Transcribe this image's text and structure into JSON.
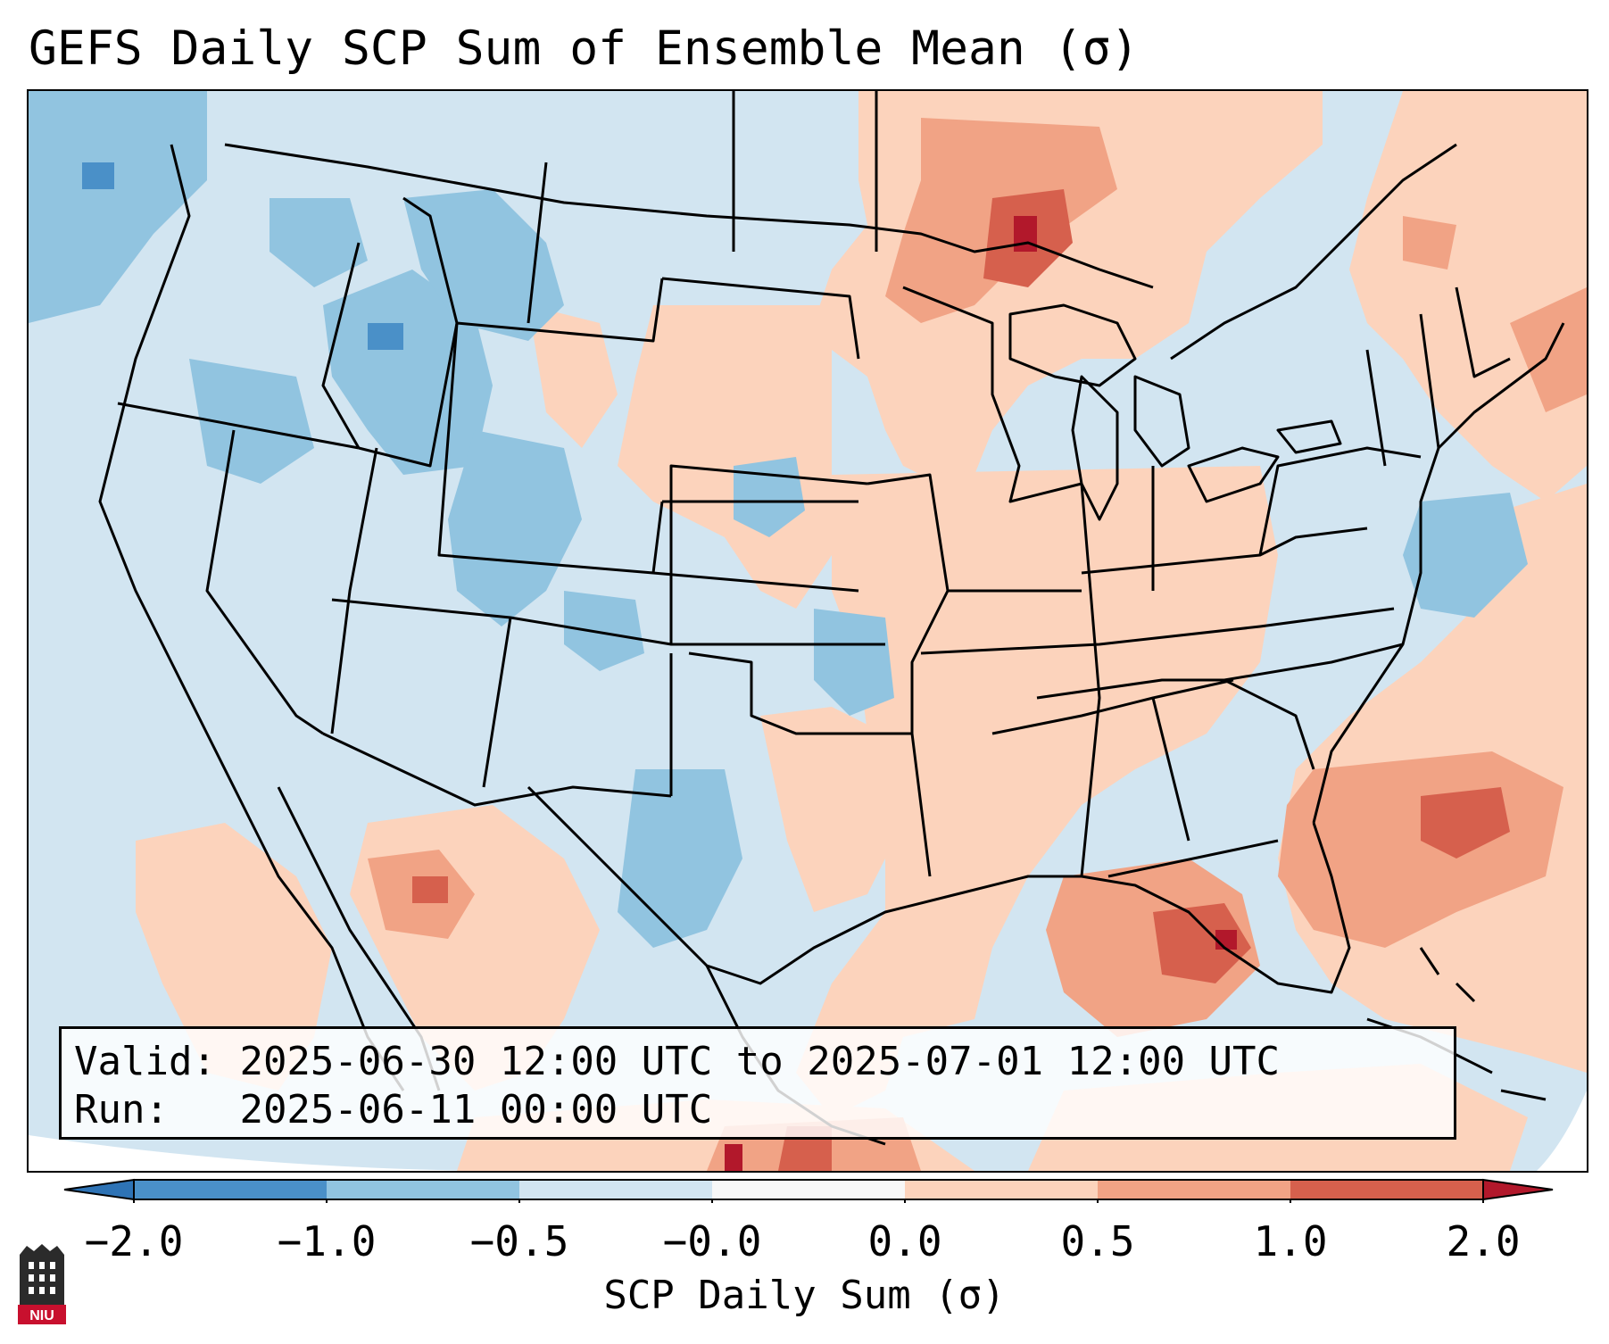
{
  "title": "GEFS Daily SCP Sum of Ensemble Mean (σ)",
  "valid_label": "Valid:",
  "valid_value": "2025-06-30 12:00 UTC to 2025-07-01 12:00 UTC",
  "run_label": "Run:",
  "run_value": "2025-06-11 00:00 UTC",
  "colorbar": {
    "label": "SCP Daily Sum (σ)",
    "ticks": [
      "−2.0",
      "−1.0",
      "−0.5",
      "−0.0",
      "0.0",
      "0.5",
      "1.0",
      "2.0"
    ],
    "colors": {
      "below_-2": "#2e73b5",
      "-2_-1": "#4a90c8",
      "-1_-0.5": "#91c4e0",
      "-0.5_0": "#d2e5f1",
      "0_0": "#f7f7f7",
      "0_0.5": "#fcd3bc",
      "0.5_1": "#f1a385",
      "1_2": "#d6604d",
      "above_2": "#b2182b"
    }
  },
  "logo_text": "NIU",
  "map_background": "#d2e5f1"
}
